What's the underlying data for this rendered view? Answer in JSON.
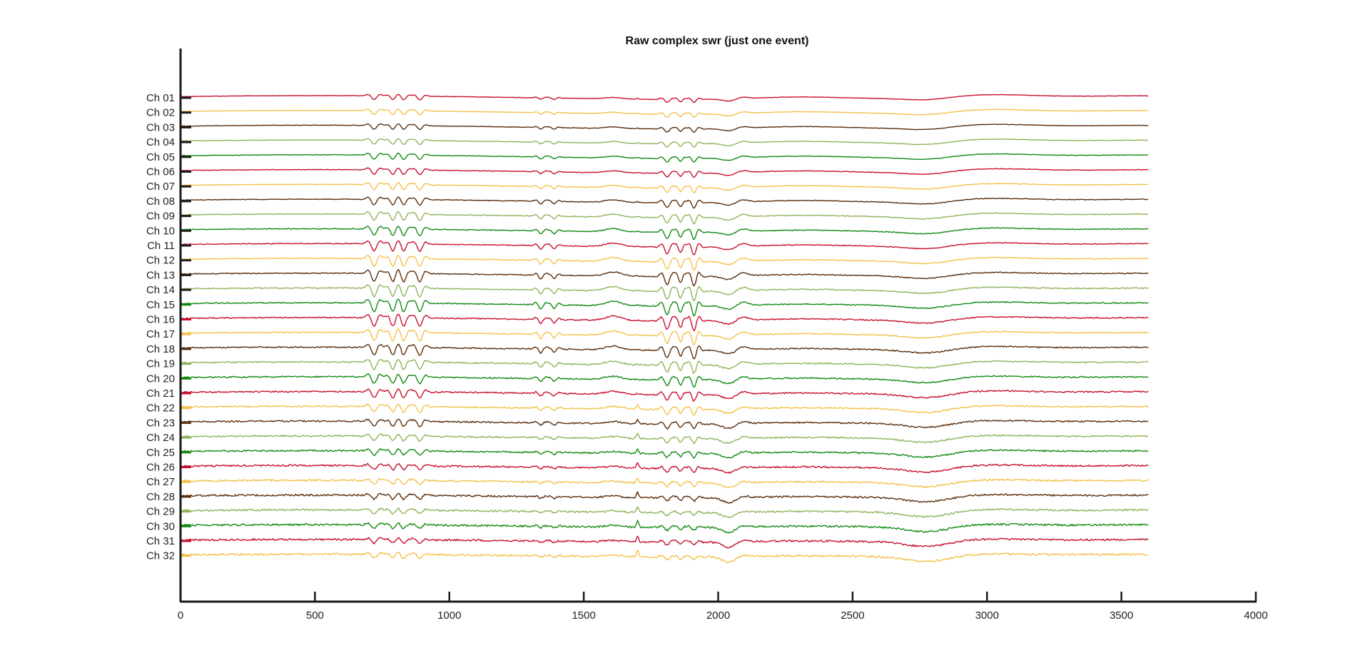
{
  "chart_data": {
    "type": "line",
    "title": "Raw complex swr (just one event)",
    "xlabel": "",
    "ylabel": "",
    "xlim": [
      0,
      4000
    ],
    "xticks": [
      0,
      500,
      1000,
      1500,
      2000,
      2500,
      3000,
      3500,
      4000
    ],
    "x_range_of_traces": [
      0,
      3600
    ],
    "grid": false,
    "legend": "none",
    "colors": [
      "#c8102e",
      "#f5c04a",
      "#5a2e0c",
      "#8fb35a",
      "#128a12"
    ],
    "channels": [
      "Ch 01",
      "Ch 02",
      "Ch 03",
      "Ch 04",
      "Ch 05",
      "Ch 06",
      "Ch 07",
      "Ch 08",
      "Ch 09",
      "Ch 10",
      "Ch 11",
      "Ch 12",
      "Ch 13",
      "Ch 14",
      "Ch 15",
      "Ch 16",
      "Ch 17",
      "Ch 18",
      "Ch 19",
      "Ch 20",
      "Ch 21",
      "Ch 22",
      "Ch 23",
      "Ch 24",
      "Ch 25",
      "Ch 26",
      "Ch 27",
      "Ch 28",
      "Ch 29",
      "Ch 30",
      "Ch 31",
      "Ch 32"
    ],
    "series_note_events_x": [
      720,
      790,
      830,
      890,
      1330,
      1390,
      1610,
      1700,
      1800,
      1860,
      1910,
      2040,
      2090,
      2300,
      2850
    ]
  }
}
